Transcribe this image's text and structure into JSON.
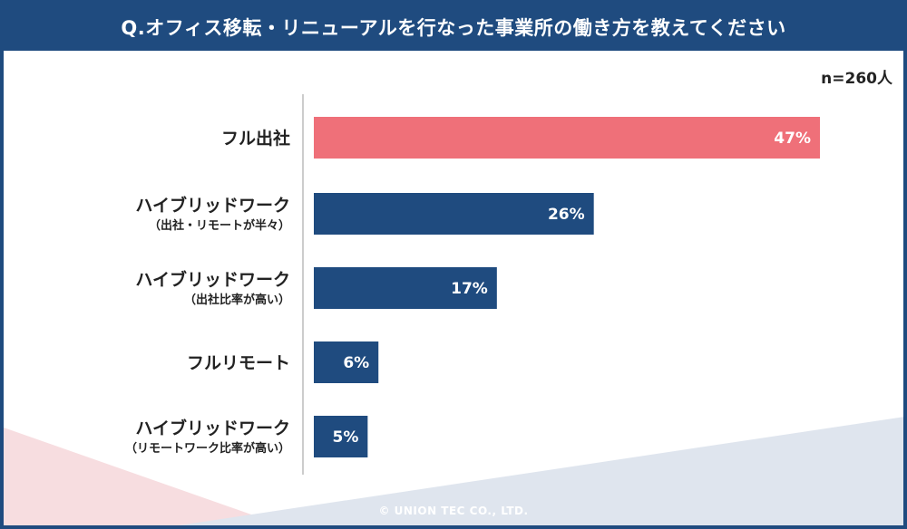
{
  "header": {
    "title": "Q.オフィス移転・リニューアルを行なった事業所の働き方を教えてください"
  },
  "sample_size": "n=260人",
  "copyright": "© UNION TEC CO., LTD.",
  "colors": {
    "navy": "#1f4b7f",
    "highlight": "#ef7079",
    "bar": "#1f4b7f"
  },
  "chart_data": {
    "type": "bar",
    "orientation": "horizontal",
    "title": "Q.オフィス移転・リニューアルを行なった事業所の働き方を教えてください",
    "categories": [
      {
        "label": "フル出社",
        "sublabel": ""
      },
      {
        "label": "ハイブリッドワーク",
        "sublabel": "（出社・リモートが半々）"
      },
      {
        "label": "ハイブリッドワーク",
        "sublabel": "（出社比率が高い）"
      },
      {
        "label": "フルリモート",
        "sublabel": ""
      },
      {
        "label": "ハイブリッドワーク",
        "sublabel": "（リモートワーク比率が高い）"
      }
    ],
    "values": [
      47,
      26,
      17,
      6,
      5
    ],
    "value_labels": [
      "47%",
      "26%",
      "17%",
      "6%",
      "5%"
    ],
    "unit": "%",
    "highlight_index": 0,
    "grid": false,
    "legend": "none"
  }
}
